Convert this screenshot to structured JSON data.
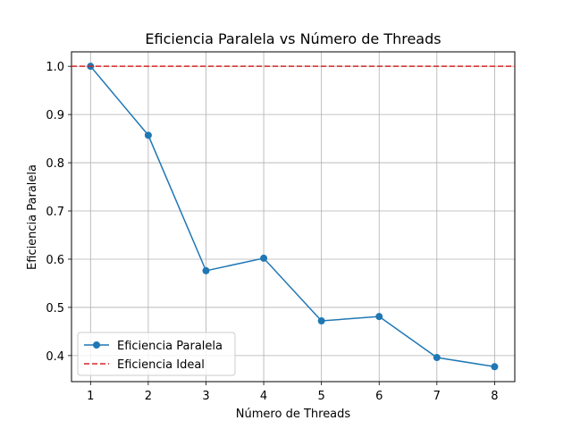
{
  "chart_data": {
    "type": "line",
    "title": "Eficiencia Paralela vs Número de Threads",
    "xlabel": "Número de Threads",
    "ylabel": "Eficiencia Paralela",
    "x": [
      1,
      2,
      3,
      4,
      5,
      6,
      7,
      8
    ],
    "xticks": [
      "1",
      "2",
      "3",
      "4",
      "5",
      "6",
      "7",
      "8"
    ],
    "yticks": [
      "0.4",
      "0.5",
      "0.6",
      "0.7",
      "0.8",
      "0.9",
      "1.0"
    ],
    "xlim": [
      0.67,
      8.35
    ],
    "ylim": [
      0.346,
      1.03
    ],
    "grid": true,
    "legend_position": "lower-left",
    "series": [
      {
        "name": "Eficiencia Paralela",
        "values": [
          1.0,
          0.857,
          0.576,
          0.602,
          0.472,
          0.481,
          0.396,
          0.377
        ],
        "color": "#1f77b4",
        "style": "solid",
        "marker": "circle"
      },
      {
        "name": "Eficiencia Ideal",
        "hline": 1.0,
        "color": "#d62728",
        "style": "dashed"
      }
    ]
  }
}
